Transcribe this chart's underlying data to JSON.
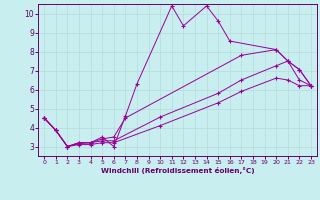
{
  "xlabel": "Windchill (Refroidissement éolien,°C)",
  "bg_color": "#c8eef0",
  "line_color": "#990099",
  "grid_color": "#aadddd",
  "xlim": [
    -0.5,
    23.5
  ],
  "ylim": [
    2.5,
    10.5
  ],
  "xticks": [
    0,
    1,
    2,
    3,
    4,
    5,
    6,
    7,
    8,
    9,
    10,
    11,
    12,
    13,
    14,
    15,
    16,
    17,
    18,
    19,
    20,
    21,
    22,
    23
  ],
  "yticks": [
    3,
    4,
    5,
    6,
    7,
    8,
    9,
    10
  ],
  "s1x": [
    0,
    1,
    2,
    3,
    4,
    5,
    6,
    7,
    8,
    11,
    12,
    14,
    15,
    16,
    20,
    21,
    22,
    23
  ],
  "s1y": [
    4.5,
    3.85,
    3.0,
    3.2,
    3.2,
    3.5,
    3.0,
    4.6,
    6.3,
    10.4,
    9.35,
    10.4,
    9.6,
    8.55,
    8.1,
    7.5,
    7.05,
    6.2
  ],
  "s2x": [
    0,
    1,
    2,
    3,
    4,
    5,
    6,
    7,
    17,
    20,
    21,
    22,
    23
  ],
  "s2y": [
    4.5,
    3.85,
    3.0,
    3.2,
    3.2,
    3.4,
    3.5,
    4.5,
    7.8,
    8.1,
    7.5,
    7.05,
    6.2
  ],
  "s3x": [
    0,
    1,
    2,
    3,
    4,
    5,
    6,
    10,
    15,
    17,
    20,
    21,
    22,
    23
  ],
  "s3y": [
    4.5,
    3.85,
    3.0,
    3.15,
    3.2,
    3.3,
    3.3,
    4.55,
    5.8,
    6.5,
    7.25,
    7.5,
    6.5,
    6.2
  ],
  "s4x": [
    0,
    1,
    2,
    3,
    4,
    5,
    6,
    10,
    15,
    17,
    20,
    21,
    22,
    23
  ],
  "s4y": [
    4.5,
    3.85,
    3.0,
    3.1,
    3.1,
    3.2,
    3.2,
    4.1,
    5.3,
    5.9,
    6.6,
    6.5,
    6.2,
    6.2
  ]
}
